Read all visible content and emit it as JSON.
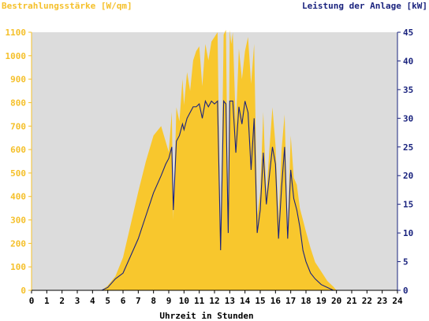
{
  "colors": {
    "irradiance": "#f8c72d",
    "power": "#1a237e",
    "plot_bg": "#dcdcdc",
    "left_text": "#f5c02a",
    "right_text": "#1a237e"
  },
  "chart_data": {
    "type": "area",
    "title_left": "Bestrahlungsstärke [W/qm]",
    "title_right": "Leistung der Anlage [kW]",
    "xlabel": "Uhrzeit in Stunden",
    "xlim": [
      0,
      24
    ],
    "ylim_left": [
      0,
      1100
    ],
    "ylim_right": [
      0,
      45
    ],
    "x_ticks": [
      "0",
      "1",
      "2",
      "3",
      "4",
      "5",
      "6",
      "7",
      "8",
      "9",
      "10",
      "11",
      "12",
      "13",
      "14",
      "15",
      "16",
      "17",
      "18",
      "19",
      "20",
      "21",
      "22",
      "23",
      "24"
    ],
    "y_left_ticks": [
      "0",
      "100",
      "200",
      "300",
      "400",
      "500",
      "600",
      "700",
      "800",
      "900",
      "1000",
      "1100"
    ],
    "y_right_ticks": [
      "0",
      "5",
      "10",
      "15",
      "20",
      "25",
      "30",
      "35",
      "40",
      "45"
    ],
    "grid": false,
    "series": [
      {
        "name": "Bestrahlungsstärke [W/qm]",
        "axis": "left",
        "type": "area",
        "x": [
          0,
          4.6,
          5.0,
          5.5,
          6.0,
          6.5,
          7.0,
          7.5,
          8.0,
          8.5,
          9.0,
          9.2,
          9.3,
          9.5,
          9.7,
          9.9,
          10.0,
          10.2,
          10.4,
          10.6,
          10.8,
          11.0,
          11.2,
          11.4,
          11.6,
          11.8,
          12.0,
          12.2,
          12.4,
          12.6,
          12.75,
          12.9,
          13.0,
          13.1,
          13.2,
          13.4,
          13.6,
          13.8,
          14.0,
          14.2,
          14.4,
          14.6,
          14.8,
          15.0,
          15.2,
          15.4,
          15.6,
          15.8,
          16.0,
          16.2,
          16.4,
          16.6,
          16.8,
          17.0,
          17.2,
          17.4,
          17.6,
          17.8,
          18.0,
          18.3,
          18.6,
          19.0,
          19.4,
          19.8,
          20.0,
          20.3,
          24
        ],
        "y": [
          0,
          0,
          20,
          60,
          140,
          280,
          420,
          550,
          660,
          700,
          590,
          760,
          300,
          780,
          720,
          900,
          790,
          930,
          850,
          980,
          1020,
          1040,
          870,
          1050,
          980,
          1060,
          1080,
          1100,
          180,
          1090,
          1110,
          260,
          1110,
          1050,
          1100,
          700,
          1030,
          900,
          1020,
          1080,
          880,
          1050,
          320,
          420,
          760,
          400,
          600,
          780,
          620,
          300,
          600,
          750,
          250,
          660,
          480,
          450,
          350,
          300,
          250,
          180,
          120,
          80,
          40,
          15,
          0,
          0,
          0
        ]
      },
      {
        "name": "Leistung der Anlage [kW]",
        "axis": "right",
        "type": "line",
        "x": [
          0,
          4.6,
          5.0,
          5.5,
          6.0,
          6.5,
          7.0,
          7.5,
          8.0,
          8.5,
          8.8,
          9.0,
          9.2,
          9.3,
          9.5,
          9.7,
          9.9,
          10.0,
          10.2,
          10.4,
          10.6,
          10.8,
          11.0,
          11.2,
          11.4,
          11.6,
          11.8,
          12.0,
          12.2,
          12.4,
          12.6,
          12.75,
          12.9,
          13.0,
          13.1,
          13.2,
          13.4,
          13.6,
          13.8,
          14.0,
          14.2,
          14.4,
          14.6,
          14.8,
          15.0,
          15.2,
          15.4,
          15.6,
          15.8,
          16.0,
          16.2,
          16.4,
          16.6,
          16.8,
          17.0,
          17.2,
          17.4,
          17.6,
          17.8,
          18.0,
          18.3,
          18.6,
          19.0,
          19.4,
          19.8,
          20.0,
          20.3,
          24
        ],
        "y": [
          0,
          0,
          0.5,
          2,
          3,
          6,
          9,
          13,
          17,
          20,
          22,
          23,
          25,
          14,
          26,
          27,
          29,
          28,
          30,
          31,
          32,
          32,
          32.5,
          30,
          33,
          32,
          33,
          32.5,
          33,
          7,
          33,
          32.5,
          10,
          33,
          33,
          33,
          24,
          32,
          29,
          33,
          31,
          21,
          30,
          10,
          14,
          24,
          15,
          20,
          25,
          22,
          9,
          18,
          25,
          9,
          21,
          16,
          14,
          11,
          7,
          5,
          3,
          2,
          1,
          0.5,
          0,
          0,
          0,
          0
        ]
      }
    ]
  }
}
